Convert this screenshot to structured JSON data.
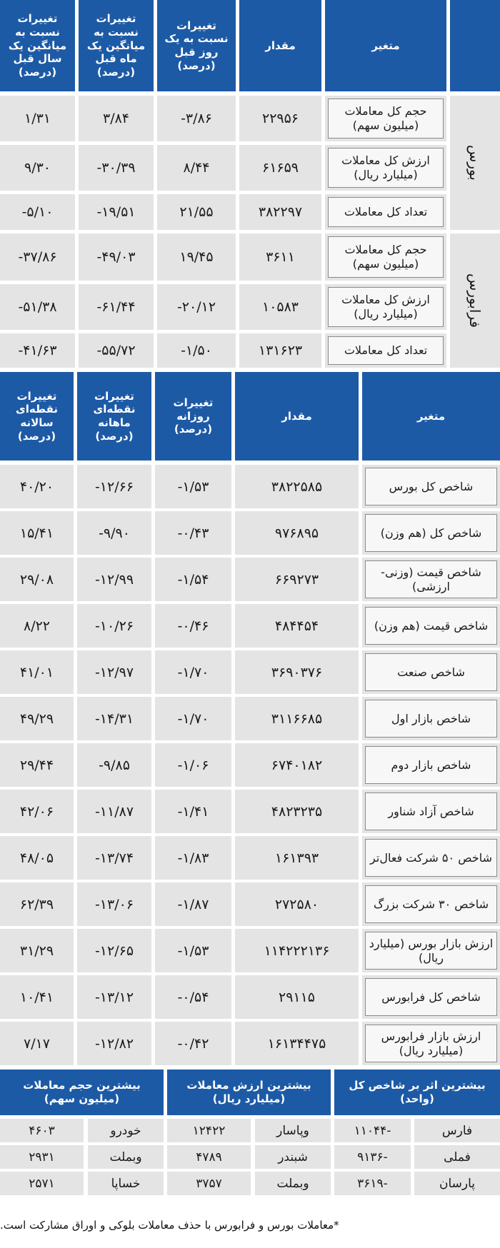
{
  "table1": {
    "header": [
      "متغیر",
      "مقدار",
      "تغییرات نسبت به یک روز قبل (درصد)",
      "تغییرات نسبت به میانگین یک ماه قبل (درصد)",
      "تغییرات نسبت به میانگین یک سال قبل (درصد)"
    ],
    "groups": [
      {
        "name": "بورس",
        "rows": [
          [
            "حجم کل معاملات (میلیون سهم)",
            "۲۲۹۵۶",
            "-۳/۸۶",
            "۳/۸۴",
            "۱/۳۱"
          ],
          [
            "ارزش کل معاملات (میلیارد ریال)",
            "۶۱۶۵۹",
            "۸/۴۴",
            "-۳۰/۳۹",
            "۹/۳۰"
          ],
          [
            "تعداد کل معاملات",
            "۳۸۲۲۹۷",
            "۲۱/۵۵",
            "-۱۹/۵۱",
            "-۵/۱۰"
          ]
        ]
      },
      {
        "name": "فرابورس",
        "rows": [
          [
            "حجم کل معاملات (میلیون سهم)",
            "۳۶۱۱",
            "۱۹/۴۵",
            "-۴۹/۰۳",
            "-۳۷/۸۶"
          ],
          [
            "ارزش کل معاملات (میلیارد ریال)",
            "۱۰۵۸۳",
            "-۲۰/۱۲",
            "-۶۱/۴۴",
            "-۵۱/۳۸"
          ],
          [
            "تعداد کل معاملات",
            "۱۳۱۶۲۳",
            "-۱/۵۰",
            "-۵۵/۷۲",
            "-۴۱/۶۳"
          ]
        ]
      }
    ]
  },
  "table2": {
    "header": [
      "متغیر",
      "مقدار",
      "تغییرات روزانه (درصد)",
      "تغییرات نقطه‌ای ماهانه (درصد)",
      "تغییرات نقطه‌ای سالانه (درصد)"
    ],
    "rows": [
      [
        "شاخص کل بورس",
        "۳۸۲۲۵۸۵",
        "-۱/۵۳",
        "-۱۲/۶۶",
        "۴۰/۲۰"
      ],
      [
        "شاخص کل (هم وزن)",
        "۹۷۶۸۹۵",
        "-۰/۴۳",
        "-۹/۹۰",
        "۱۵/۴۱"
      ],
      [
        "شاخص قیمت (وزنی- ارزشی)",
        "۶۶۹۲۷۳",
        "-۱/۵۴",
        "-۱۲/۹۹",
        "۲۹/۰۸"
      ],
      [
        "شاخص قیمت (هم وزن)",
        "۴۸۴۴۵۴",
        "-۰/۴۶",
        "-۱۰/۲۶",
        "۸/۲۲"
      ],
      [
        "شاخص صنعت",
        "۳۶۹۰۳۷۶",
        "-۱/۷۰",
        "-۱۲/۹۷",
        "۴۱/۰۱"
      ],
      [
        "شاخص بازار اول",
        "۳۱۱۶۶۸۵",
        "-۱/۷۰",
        "-۱۴/۳۱",
        "۴۹/۲۹"
      ],
      [
        "شاخص بازار دوم",
        "۶۷۴۰۱۸۲",
        "-۱/۰۶",
        "-۹/۸۵",
        "۲۹/۴۴"
      ],
      [
        "شاخص آزاد شناور",
        "۴۸۲۳۲۳۵",
        "-۱/۴۱",
        "-۱۱/۸۷",
        "۴۲/۰۶"
      ],
      [
        "شاخص ۵۰ شرکت فعال‌تر",
        "۱۶۱۳۹۳",
        "-۱/۸۳",
        "-۱۳/۷۴",
        "۴۸/۰۵"
      ],
      [
        "شاخص ۳۰ شرکت بزرگ",
        "۲۷۲۵۸۰",
        "-۱/۸۷",
        "-۱۳/۰۶",
        "۶۲/۳۹"
      ],
      [
        "ارزش بازار بورس (میلیارد ریال)",
        "۱۱۴۲۲۲۱۳۶",
        "-۱/۵۳",
        "-۱۲/۶۵",
        "۳۱/۲۹"
      ],
      [
        "شاخص کل فرابورس",
        "۲۹۱۱۵",
        "-۰/۵۴",
        "-۱۳/۱۲",
        "۱۰/۴۱"
      ],
      [
        "ارزش بازار فرابورس (میلیارد ریال)",
        "۱۶۱۳۴۴۷۵",
        "-۰/۴۲",
        "-۱۲/۸۲",
        "۷/۱۷"
      ]
    ]
  },
  "table3": {
    "header": [
      "بیشترین اثر بر شاخص کل (واحد)",
      "بیشترین ارزش معاملات (میلیارد ریال)",
      "بیشترین حجم معاملات (میلیون سهم)"
    ],
    "rows": [
      [
        "فارس",
        "۱۱۰۴۴-",
        "وپاسار",
        "۱۲۴۲۲",
        "خودرو",
        "۴۶۰۳"
      ],
      [
        "فملی",
        "۹۱۳۶-",
        "شبندر",
        "۴۷۸۹",
        "وبملت",
        "۲۹۳۱"
      ],
      [
        "پارسان",
        "۳۶۱۹-",
        "وبملت",
        "۳۷۵۷",
        "خساپا",
        "۲۵۷۱"
      ]
    ]
  },
  "footnote": "*معاملات بورس و فرابورس با حذف معاملات بلوکی و اوراق مشارکت است."
}
